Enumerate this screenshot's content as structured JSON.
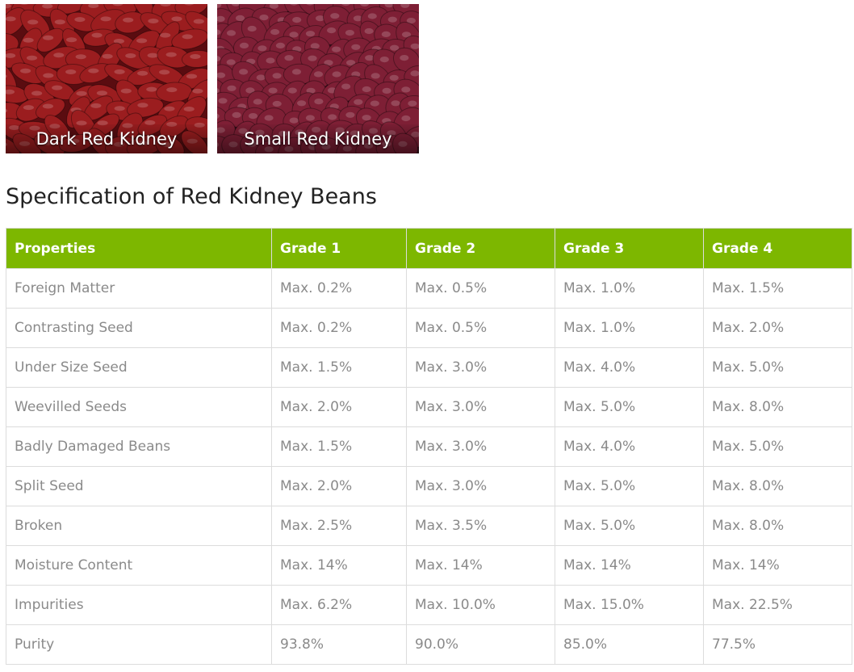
{
  "gallery": {
    "items": [
      {
        "caption": "Dark Red Kidney",
        "color": "#9b1d1f"
      },
      {
        "caption": "Small Red Kidney",
        "color": "#7e1f35"
      }
    ]
  },
  "page": {
    "title": "Specification of Red Kidney Beans"
  },
  "table": {
    "header_color": "#7db700",
    "headers": [
      "Properties",
      "Grade 1",
      "Grade 2",
      "Grade 3",
      "Grade 4"
    ],
    "rows": [
      [
        "Foreign Matter",
        "Max. 0.2%",
        "Max. 0.5%",
        "Max. 1.0%",
        "Max. 1.5%"
      ],
      [
        "Contrasting Seed",
        "Max. 0.2%",
        "Max. 0.5%",
        "Max. 1.0%",
        "Max. 2.0%"
      ],
      [
        "Under Size Seed",
        "Max. 1.5%",
        "Max. 3.0%",
        "Max. 4.0%",
        "Max. 5.0%"
      ],
      [
        "Weevilled Seeds",
        "Max. 2.0%",
        "Max. 3.0%",
        "Max. 5.0%",
        "Max. 8.0%"
      ],
      [
        "Badly Damaged Beans",
        "Max. 1.5%",
        "Max. 3.0%",
        "Max. 4.0%",
        "Max. 5.0%"
      ],
      [
        "Split Seed",
        "Max. 2.0%",
        "Max. 3.0%",
        "Max. 5.0%",
        "Max. 8.0%"
      ],
      [
        "Broken",
        "Max. 2.5%",
        "Max. 3.5%",
        "Max. 5.0%",
        "Max. 8.0%"
      ],
      [
        "Moisture Content",
        "Max. 14%",
        "Max. 14%",
        "Max. 14%",
        "Max. 14%"
      ],
      [
        "Impurities",
        "Max. 6.2%",
        "Max. 10.0%",
        "Max. 15.0%",
        "Max. 22.5%"
      ],
      [
        "Purity",
        "93.8%",
        "90.0%",
        "85.0%",
        "77.5%"
      ]
    ]
  }
}
